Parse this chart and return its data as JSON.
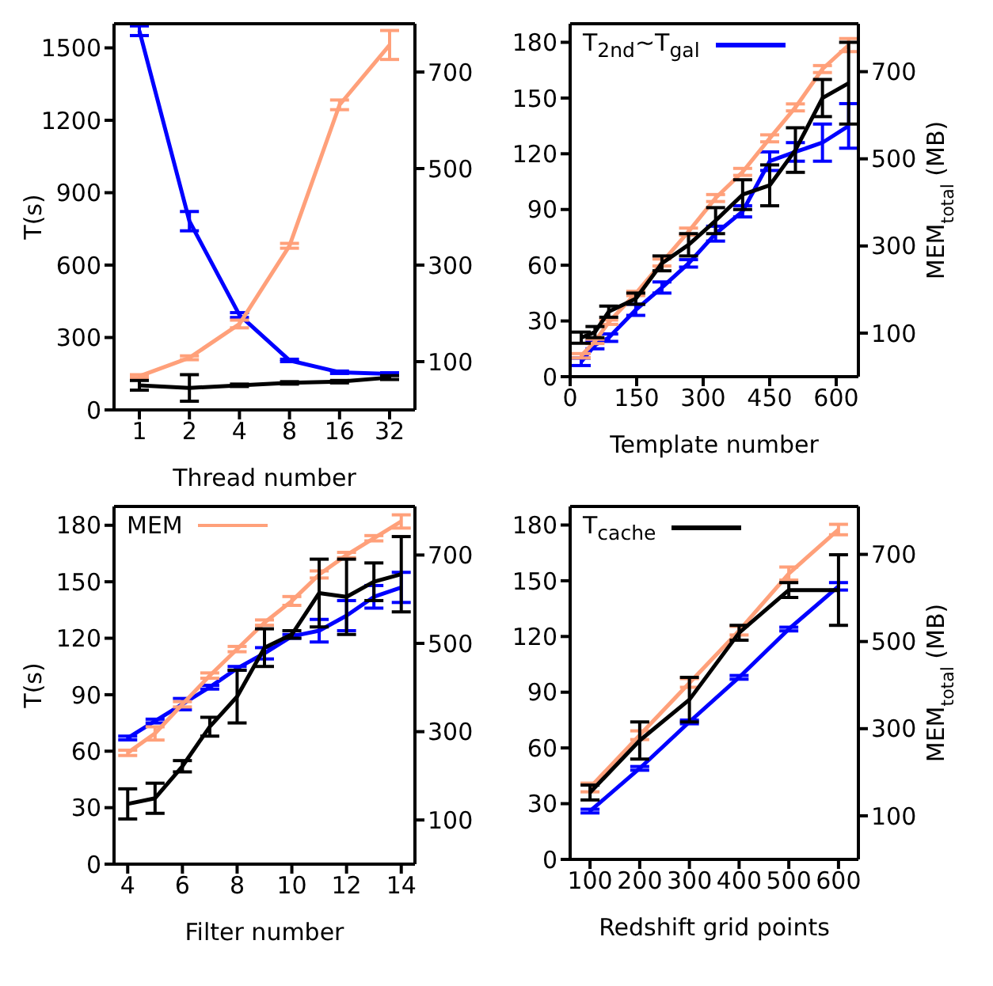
{
  "chart_data": [
    {
      "type": "line",
      "xlabel": "Thread number",
      "ylabel": "T(s)",
      "categories": [
        "1",
        "2",
        "4",
        "8",
        "16",
        "32"
      ],
      "ylim": [
        0,
        1600
      ],
      "yticks": [
        0,
        300,
        600,
        900,
        1200,
        1500
      ],
      "y2lim": [
        0,
        800
      ],
      "y2ticks": [
        100,
        300,
        500,
        700
      ],
      "marker": "none",
      "series": [
        {
          "color": "#0000ff",
          "values": [
            1571,
            782,
            393,
            205,
            156,
            149
          ],
          "errors": [
            20,
            40,
            10,
            5,
            5,
            5
          ]
        },
        {
          "color": "#ffa07a",
          "axis": "y2",
          "values": [
            70,
            108,
            178,
            340,
            632,
            756
          ],
          "errors": [
            3,
            4,
            8,
            5,
            10,
            30
          ]
        },
        {
          "color": "#000000",
          "values": [
            102,
            91,
            102,
            112,
            117,
            134
          ],
          "errors": [
            20,
            55,
            5,
            5,
            5,
            8
          ]
        }
      ]
    },
    {
      "type": "line",
      "xlabel": "Template number",
      "y2label": "MEM$_{total}$ (MB)",
      "x": [
        25,
        56,
        87,
        148,
        207,
        267,
        328,
        389,
        450,
        508,
        569,
        628
      ],
      "xlim": [
        0,
        650
      ],
      "xticks": [
        0,
        150,
        300,
        450,
        600
      ],
      "ylim": [
        0,
        190
      ],
      "yticks": [
        0,
        30,
        60,
        90,
        120,
        150,
        180
      ],
      "y2lim": [
        0,
        810
      ],
      "y2ticks": [
        100,
        300,
        500,
        700
      ],
      "legend": "top left",
      "marker": "none",
      "series": [
        {
          "name": "T$_{2nd}$~T$_{gal}$",
          "color": "#0000ff",
          "values": [
            8,
            17,
            21,
            36,
            48,
            61,
            77,
            89,
            116,
            121,
            126,
            135
          ],
          "errors": [
            2,
            2,
            2,
            3,
            3,
            2,
            4,
            3,
            5,
            5,
            10,
            12
          ]
        },
        {
          "color": "#ffa07a",
          "axis": "y2",
          "values": [
            48,
            81,
            125,
            191,
            262,
            333,
            410,
            470,
            547,
            618,
            706,
            761
          ],
          "errors": [
            5,
            5,
            5,
            5,
            8,
            8,
            8,
            8,
            8,
            8,
            8,
            15
          ]
        },
        {
          "color": "#000000",
          "values": [
            21,
            24,
            35,
            42,
            61,
            71,
            84,
            98,
            103,
            122,
            150,
            158
          ],
          "errors": [
            3,
            3,
            3,
            3,
            4,
            6,
            7,
            8,
            11,
            12,
            10,
            22
          ]
        }
      ]
    },
    {
      "type": "line",
      "xlabel": "Filter number",
      "ylabel": "T(s)",
      "x": [
        4,
        5,
        6,
        7,
        8,
        9,
        10,
        11,
        12,
        13,
        14
      ],
      "xlim": [
        3.5,
        14.5
      ],
      "xticks": [
        4,
        6,
        8,
        10,
        12,
        14
      ],
      "ylim": [
        0,
        190
      ],
      "yticks": [
        0,
        30,
        60,
        90,
        120,
        150,
        180
      ],
      "y2lim": [
        0,
        810
      ],
      "y2ticks": [
        100,
        300,
        500,
        700
      ],
      "legend": "top left",
      "marker": "none",
      "series": [
        {
          "color": "#0000ff",
          "values": [
            67,
            76,
            85,
            94,
            104,
            112,
            121,
            124,
            132,
            142,
            147
          ],
          "errors": [
            1,
            1,
            3,
            1,
            1,
            3,
            1,
            6,
            8,
            6,
            8
          ]
        },
        {
          "name": "MEM",
          "color": "#ffa07a",
          "axis": "y2",
          "values": [
            252,
            296,
            362,
            427,
            487,
            547,
            596,
            656,
            700,
            738,
            776
          ],
          "errors": [
            6,
            15,
            6,
            6,
            6,
            6,
            10,
            8,
            6,
            6,
            15
          ]
        },
        {
          "color": "#000000",
          "values": [
            32,
            35,
            52,
            73,
            89,
            115,
            122,
            144,
            142,
            150,
            154
          ],
          "errors": [
            8,
            8,
            3,
            5,
            14,
            10,
            2,
            18,
            20,
            10,
            20
          ]
        }
      ]
    },
    {
      "type": "line",
      "xlabel": "Redshift grid points",
      "y2label": "MEM$_{total}$ (MB)",
      "x": [
        100,
        200,
        300,
        400,
        500,
        600
      ],
      "xlim": [
        60,
        640
      ],
      "xticks": [
        100,
        200,
        300,
        400,
        500,
        600
      ],
      "ylim": [
        0,
        190
      ],
      "yticks": [
        0,
        30,
        60,
        90,
        120,
        150,
        180
      ],
      "y2lim": [
        0,
        810
      ],
      "y2ticks": [
        100,
        300,
        500,
        700
      ],
      "legend": "top left",
      "marker": "none",
      "series": [
        {
          "color": "#0000ff",
          "values": [
            26,
            49,
            74,
            98,
            124,
            147
          ],
          "errors": [
            1,
            1,
            1,
            1,
            1,
            2
          ]
        },
        {
          "color": "#ffa07a",
          "axis": "y2",
          "values": [
            165,
            285,
            405,
            525,
            656,
            757
          ],
          "errors": [
            10,
            10,
            10,
            10,
            15,
            12
          ]
        },
        {
          "name": "T$_{cache}$",
          "color": "#000000",
          "values": [
            36,
            64,
            86,
            122,
            145,
            145
          ],
          "errors": [
            4,
            10,
            12,
            4,
            4,
            19
          ]
        }
      ]
    }
  ]
}
